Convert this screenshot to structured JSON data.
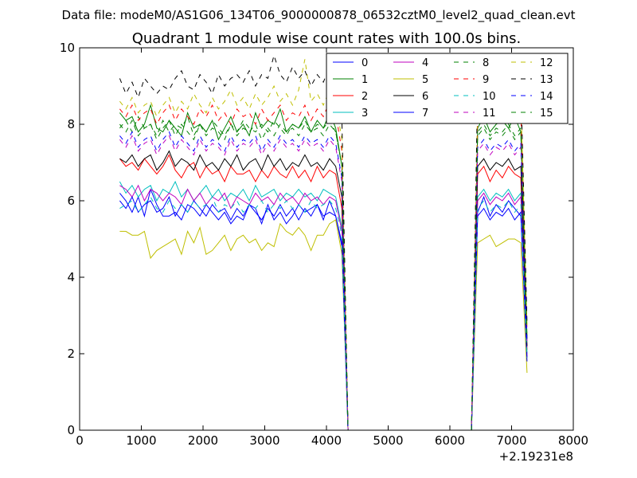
{
  "figure": {
    "suptitle": "Data file: modeM0/AS1G06_134T06_9000000878_06532cztM0_level2_quad_clean.evt"
  },
  "chart_data": {
    "type": "line",
    "title": "Quadrant 1 module wise count rates with 100.0s bins.",
    "xlabel": "",
    "ylabel": "",
    "x_offset_label": "+2.19231e8",
    "xlim": [
      0,
      8000
    ],
    "ylim": [
      0,
      10
    ],
    "xticks": [
      0,
      1000,
      2000,
      3000,
      4000,
      5000,
      6000,
      7000,
      8000
    ],
    "yticks": [
      0,
      2,
      4,
      6,
      8,
      10
    ],
    "xtick_labels": [
      "0",
      "1000",
      "2000",
      "3000",
      "4000",
      "5000",
      "6000",
      "7000",
      "8000"
    ],
    "ytick_labels": [
      "0",
      "2",
      "4",
      "6",
      "8",
      "10"
    ],
    "grid": false,
    "legend": {
      "location": "top-right",
      "columns": 4
    },
    "x": [
      650,
      750,
      850,
      950,
      1050,
      1150,
      1250,
      1350,
      1450,
      1550,
      1650,
      1750,
      1850,
      1950,
      2050,
      2150,
      2250,
      2350,
      2450,
      2550,
      2650,
      2750,
      2850,
      2950,
      3050,
      3150,
      3250,
      3350,
      3450,
      3550,
      3650,
      3750,
      3850,
      3950,
      4050,
      4150,
      4250,
      4350,
      6350,
      6450,
      6550,
      6650,
      6750,
      6850,
      6950,
      7050,
      7150,
      7250
    ],
    "series": [
      {
        "name": "0",
        "color": "#0000ff",
        "dash": "solid",
        "values": [
          6.2,
          6.0,
          5.7,
          6.1,
          5.6,
          6.3,
          5.9,
          5.6,
          5.6,
          5.7,
          5.5,
          5.9,
          5.8,
          5.6,
          5.9,
          5.7,
          5.5,
          5.7,
          5.4,
          5.6,
          5.5,
          5.9,
          5.8,
          5.4,
          5.9,
          5.5,
          5.7,
          5.4,
          5.6,
          5.9,
          5.7,
          5.8,
          5.9,
          5.5,
          6.0,
          5.6,
          4.8,
          0.0,
          0.0,
          5.7,
          6.1,
          5.6,
          5.9,
          5.7,
          6.0,
          5.8,
          5.6,
          1.9
        ]
      },
      {
        "name": "1",
        "color": "#008000",
        "dash": "solid",
        "values": [
          8.3,
          8.1,
          8.2,
          7.8,
          8.0,
          8.5,
          7.9,
          7.8,
          8.1,
          7.9,
          7.7,
          8.3,
          7.9,
          8.0,
          7.8,
          8.1,
          7.6,
          7.9,
          8.2,
          7.8,
          8.0,
          7.7,
          8.3,
          7.9,
          8.1,
          8.0,
          8.4,
          7.8,
          8.0,
          7.9,
          8.2,
          7.8,
          8.1,
          7.9,
          8.3,
          7.9,
          6.9,
          0.0,
          0.0,
          7.9,
          8.2,
          7.8,
          8.0,
          8.1,
          7.9,
          8.2,
          7.8,
          2.4
        ]
      },
      {
        "name": "2",
        "color": "#ff0000",
        "dash": "solid",
        "values": [
          7.1,
          6.9,
          7.0,
          6.8,
          7.1,
          6.9,
          6.7,
          6.9,
          7.2,
          6.8,
          6.6,
          6.9,
          7.0,
          6.6,
          6.9,
          6.7,
          6.8,
          6.5,
          6.9,
          6.7,
          6.7,
          6.8,
          6.5,
          6.8,
          6.6,
          6.9,
          6.7,
          6.6,
          6.9,
          6.6,
          6.8,
          6.5,
          6.9,
          6.6,
          6.8,
          6.7,
          5.8,
          0.0,
          0.0,
          6.7,
          6.9,
          6.5,
          6.8,
          6.6,
          6.9,
          6.7,
          6.6,
          2.1
        ]
      },
      {
        "name": "3",
        "color": "#00bfbf",
        "dash": "solid",
        "values": [
          6.5,
          6.2,
          6.4,
          6.1,
          6.3,
          6.4,
          6.0,
          6.3,
          6.2,
          6.5,
          6.1,
          6.3,
          6.0,
          6.2,
          6.4,
          6.1,
          6.3,
          6.0,
          6.2,
          6.1,
          6.3,
          6.0,
          6.4,
          6.1,
          6.2,
          6.3,
          6.0,
          6.2,
          6.1,
          6.3,
          6.1,
          6.2,
          6.0,
          6.3,
          6.2,
          6.1,
          5.3,
          0.0,
          0.0,
          6.1,
          6.3,
          6.0,
          6.2,
          6.1,
          6.3,
          6.0,
          6.2,
          2.0
        ]
      },
      {
        "name": "4",
        "color": "#bf00bf",
        "dash": "solid",
        "values": [
          6.4,
          6.3,
          6.1,
          6.4,
          6.0,
          6.3,
          6.2,
          6.0,
          6.2,
          6.1,
          5.9,
          6.3,
          6.0,
          6.2,
          5.9,
          6.1,
          6.0,
          6.2,
          5.8,
          6.1,
          6.0,
          5.9,
          6.2,
          6.0,
          6.1,
          5.9,
          6.2,
          6.0,
          6.1,
          5.9,
          6.2,
          6.0,
          6.1,
          5.9,
          6.1,
          6.0,
          5.2,
          0.0,
          0.0,
          6.0,
          6.2,
          5.9,
          6.1,
          6.0,
          6.2,
          5.9,
          6.1,
          1.9
        ]
      },
      {
        "name": "5",
        "color": "#bfbf00",
        "dash": "solid",
        "values": [
          5.2,
          5.2,
          5.1,
          5.1,
          5.2,
          4.5,
          4.7,
          4.8,
          4.9,
          5.0,
          4.6,
          5.2,
          4.9,
          5.3,
          4.6,
          4.7,
          4.9,
          5.1,
          4.7,
          5.0,
          5.1,
          4.9,
          5.0,
          4.7,
          4.9,
          4.8,
          5.4,
          5.2,
          5.1,
          5.3,
          5.1,
          4.7,
          5.1,
          5.1,
          5.4,
          5.5,
          4.6,
          0.0,
          0.0,
          4.9,
          5.0,
          5.1,
          4.8,
          4.9,
          5.0,
          5.0,
          4.9,
          1.5
        ]
      },
      {
        "name": "6",
        "color": "#000000",
        "dash": "solid",
        "values": [
          7.1,
          7.0,
          7.2,
          6.9,
          7.1,
          7.2,
          6.8,
          7.0,
          7.3,
          6.9,
          7.1,
          7.0,
          6.8,
          7.2,
          6.9,
          7.0,
          6.8,
          7.1,
          6.9,
          7.2,
          6.8,
          7.0,
          7.1,
          6.8,
          7.2,
          6.9,
          7.1,
          6.8,
          7.0,
          6.9,
          7.2,
          6.9,
          7.0,
          6.8,
          7.1,
          6.9,
          6.1,
          0.0,
          0.0,
          6.9,
          7.1,
          6.8,
          7.0,
          6.9,
          7.1,
          6.8,
          6.9,
          2.2
        ]
      },
      {
        "name": "7",
        "color": "#0000ff",
        "dash": "solid",
        "values": [
          6.0,
          5.8,
          6.1,
          5.7,
          5.9,
          6.0,
          5.7,
          5.8,
          6.1,
          5.6,
          5.9,
          5.7,
          6.0,
          5.8,
          5.6,
          5.9,
          5.7,
          5.8,
          5.5,
          5.8,
          5.6,
          5.9,
          5.7,
          5.5,
          5.8,
          5.6,
          5.9,
          5.6,
          5.8,
          5.5,
          5.8,
          5.6,
          5.9,
          5.6,
          5.7,
          5.6,
          4.9,
          0.0,
          0.0,
          5.6,
          5.8,
          5.5,
          5.7,
          5.6,
          5.8,
          5.5,
          5.7,
          1.8
        ]
      },
      {
        "name": "8",
        "color": "#008000",
        "dash": "dash",
        "values": [
          7.9,
          8.1,
          7.8,
          8.2,
          7.9,
          8.0,
          7.7,
          8.1,
          7.8,
          8.0,
          7.9,
          8.2,
          7.7,
          8.0,
          7.8,
          8.1,
          7.9,
          7.7,
          8.0,
          7.8,
          8.1,
          7.9,
          7.8,
          8.0,
          7.8,
          8.1,
          7.9,
          7.7,
          8.0,
          7.9,
          8.1,
          7.8,
          8.0,
          7.9,
          8.1,
          7.8,
          6.9,
          0.0,
          0.0,
          7.8,
          8.0,
          7.7,
          7.9,
          7.8,
          8.0,
          7.7,
          7.9,
          2.4
        ]
      },
      {
        "name": "9",
        "color": "#ff0000",
        "dash": "dash",
        "values": [
          8.4,
          8.2,
          8.5,
          8.1,
          8.3,
          8.4,
          8.0,
          8.3,
          8.5,
          8.1,
          8.4,
          8.2,
          8.0,
          8.4,
          8.2,
          8.5,
          8.1,
          8.3,
          8.0,
          8.4,
          8.2,
          8.3,
          8.0,
          8.4,
          8.1,
          8.3,
          8.5,
          8.1,
          8.3,
          8.2,
          8.5,
          8.1,
          8.4,
          8.2,
          8.6,
          8.3,
          7.3,
          0.0,
          0.0,
          8.2,
          8.4,
          8.1,
          8.3,
          8.2,
          8.4,
          8.1,
          8.3,
          2.6
        ]
      },
      {
        "name": "10",
        "color": "#00bfbf",
        "dash": "dash",
        "values": [
          5.8,
          5.9,
          6.0,
          5.7,
          5.9,
          6.1,
          5.8,
          5.7,
          6.0,
          5.8,
          5.9,
          5.7,
          6.0,
          5.8,
          5.9,
          6.1,
          5.7,
          5.9,
          5.8,
          6.0,
          5.7,
          5.9,
          5.8,
          6.0,
          5.7,
          5.9,
          5.8,
          6.0,
          5.8,
          5.9,
          5.7,
          6.0,
          5.8,
          5.9,
          6.0,
          5.8,
          5.1,
          0.0,
          0.0,
          5.8,
          6.0,
          5.7,
          5.9,
          5.8,
          6.0,
          5.7,
          5.9,
          1.9
        ]
      },
      {
        "name": "11",
        "color": "#bf00bf",
        "dash": "dash",
        "values": [
          7.6,
          7.4,
          7.7,
          7.3,
          7.5,
          7.6,
          7.2,
          7.5,
          7.7,
          7.3,
          7.6,
          7.4,
          7.2,
          7.6,
          7.3,
          7.5,
          7.4,
          7.2,
          7.6,
          7.3,
          7.5,
          7.4,
          7.6,
          7.2,
          7.5,
          7.3,
          7.6,
          7.4,
          7.5,
          7.3,
          7.6,
          7.4,
          7.5,
          7.3,
          7.6,
          7.4,
          6.5,
          0.0,
          0.0,
          7.3,
          7.5,
          7.2,
          7.4,
          7.3,
          7.5,
          7.2,
          7.4,
          2.3
        ]
      },
      {
        "name": "12",
        "color": "#bfbf00",
        "dash": "dash",
        "values": [
          8.6,
          8.4,
          8.7,
          8.3,
          8.5,
          8.6,
          8.2,
          8.5,
          8.7,
          8.3,
          8.6,
          8.4,
          8.8,
          8.5,
          8.3,
          8.7,
          8.4,
          8.6,
          8.9,
          8.5,
          8.7,
          8.4,
          8.8,
          8.5,
          8.7,
          9.0,
          8.6,
          8.8,
          8.5,
          8.9,
          9.7,
          8.6,
          8.8,
          8.5,
          8.9,
          8.6,
          7.6,
          0.0,
          0.0,
          8.5,
          8.8,
          8.4,
          8.7,
          8.5,
          8.9,
          8.5,
          8.7,
          2.7
        ]
      },
      {
        "name": "13",
        "color": "#000000",
        "dash": "dash",
        "values": [
          9.2,
          8.8,
          9.1,
          8.7,
          9.2,
          9.0,
          8.8,
          9.0,
          8.9,
          9.2,
          9.4,
          9.0,
          8.9,
          9.3,
          9.1,
          8.8,
          9.3,
          9.0,
          9.2,
          9.3,
          9.1,
          9.4,
          9.0,
          9.3,
          9.2,
          9.8,
          9.3,
          9.1,
          9.5,
          9.2,
          9.4,
          9.0,
          9.3,
          9.1,
          9.5,
          9.2,
          8.1,
          0.0,
          0.0,
          9.0,
          9.3,
          8.9,
          9.2,
          9.0,
          9.3,
          8.9,
          9.1,
          2.8
        ]
      },
      {
        "name": "14",
        "color": "#0000ff",
        "dash": "dash",
        "values": [
          7.7,
          7.5,
          7.8,
          7.4,
          7.6,
          7.7,
          7.3,
          7.6,
          7.8,
          7.4,
          7.7,
          7.5,
          7.3,
          7.7,
          7.4,
          7.6,
          7.5,
          7.3,
          7.7,
          7.4,
          7.6,
          7.5,
          7.7,
          7.3,
          7.6,
          7.4,
          7.7,
          7.5,
          7.6,
          7.4,
          7.7,
          7.5,
          7.6,
          7.4,
          7.7,
          7.5,
          6.6,
          0.0,
          0.0,
          7.4,
          7.6,
          7.3,
          7.5,
          7.4,
          7.6,
          7.3,
          7.5,
          2.3
        ]
      },
      {
        "name": "15",
        "color": "#008000",
        "dash": "dash",
        "values": [
          8.0,
          7.8,
          8.1,
          7.7,
          7.9,
          8.0,
          7.6,
          7.9,
          8.1,
          7.7,
          8.0,
          7.8,
          7.6,
          8.0,
          7.7,
          7.9,
          7.8,
          7.6,
          8.0,
          7.7,
          7.9,
          7.8,
          8.0,
          7.6,
          7.9,
          7.7,
          8.0,
          7.8,
          7.9,
          7.7,
          8.0,
          7.8,
          7.9,
          7.7,
          8.0,
          7.8,
          6.9,
          0.0,
          0.0,
          7.7,
          7.9,
          7.6,
          7.8,
          7.7,
          7.9,
          7.6,
          7.8,
          2.4
        ]
      }
    ]
  }
}
